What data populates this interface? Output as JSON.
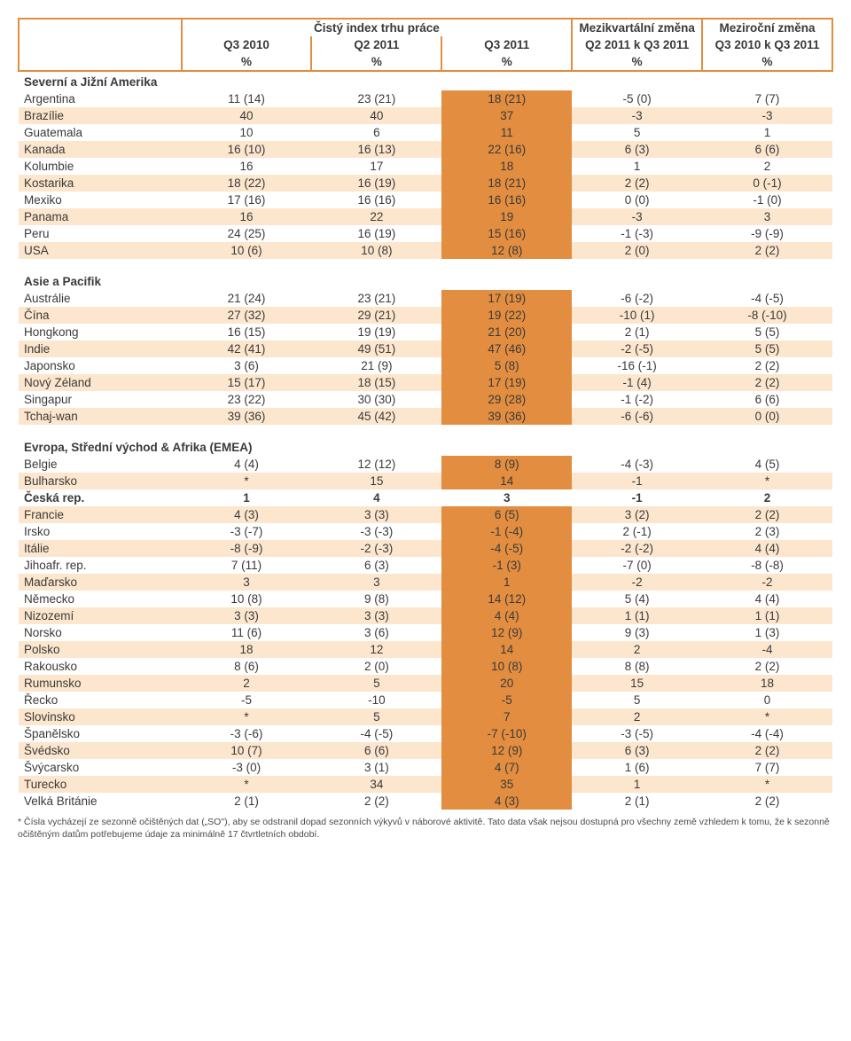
{
  "colors": {
    "border": "#e28d3f",
    "highlight": "#e28d3f",
    "stripe": "#fce6cd",
    "text": "#3a3a3a",
    "background": "#ffffff"
  },
  "header": {
    "top": [
      "",
      "Čistý index trhu práce",
      "Mezikvartální změna",
      "Meziroční změna"
    ],
    "mid": [
      "",
      "Q3 2010",
      "Q2 2011",
      "Q3 2011",
      "Q2 2011 k Q3 2011",
      "Q3 2010 k Q3 2011"
    ],
    "pct": [
      "",
      "%",
      "%",
      "%",
      "%",
      "%"
    ]
  },
  "sections": [
    {
      "title": "Severní a Jižní Amerika",
      "rows": [
        {
          "label": "Argentina",
          "c": [
            "11 (14)",
            "23 (21)",
            "18 (21)",
            "-5 (0)",
            "7 (7)"
          ],
          "hl": [
            2
          ]
        },
        {
          "label": "Brazílie",
          "c": [
            "40",
            "40",
            "37",
            "-3",
            "-3"
          ],
          "hl": [
            2
          ],
          "stripe": true
        },
        {
          "label": "Guatemala",
          "c": [
            "10",
            "6",
            "11",
            "5",
            "1"
          ],
          "hl": [
            2
          ]
        },
        {
          "label": "Kanada",
          "c": [
            "16 (10)",
            "16 (13)",
            "22 (16)",
            "6 (3)",
            "6 (6)"
          ],
          "hl": [
            2
          ],
          "stripe": true
        },
        {
          "label": "Kolumbie",
          "c": [
            "16",
            "17",
            "18",
            "1",
            "2"
          ],
          "hl": [
            2
          ]
        },
        {
          "label": "Kostarika",
          "c": [
            "18 (22)",
            "16 (19)",
            "18 (21)",
            "2 (2)",
            "0 (-1)"
          ],
          "hl": [
            2
          ],
          "stripe": true
        },
        {
          "label": "Mexiko",
          "c": [
            "17 (16)",
            "16 (16)",
            "16 (16)",
            "0 (0)",
            "-1 (0)"
          ],
          "hl": [
            2
          ]
        },
        {
          "label": "Panama",
          "c": [
            "16",
            "22",
            "19",
            "-3",
            "3"
          ],
          "hl": [
            2
          ],
          "stripe": true
        },
        {
          "label": "Peru",
          "c": [
            "24 (25)",
            "16 (19)",
            "15 (16)",
            "-1 (-3)",
            "-9 (-9)"
          ],
          "hl": [
            2
          ]
        },
        {
          "label": "USA",
          "c": [
            "10 (6)",
            "10 (8)",
            "12 (8)",
            "2 (0)",
            "2 (2)"
          ],
          "hl": [
            2
          ],
          "stripe": true
        }
      ]
    },
    {
      "title": "Asie a Pacifik",
      "rows": [
        {
          "label": "Austrálie",
          "c": [
            "21 (24)",
            "23 (21)",
            "17 (19)",
            "-6 (-2)",
            "-4 (-5)"
          ],
          "hl": [
            2
          ]
        },
        {
          "label": "Čína",
          "c": [
            "27 (32)",
            "29 (21)",
            "19 (22)",
            "-10 (1)",
            "-8 (-10)"
          ],
          "hl": [
            2
          ],
          "stripe": true
        },
        {
          "label": "Hongkong",
          "c": [
            "16 (15)",
            "19 (19)",
            "21 (20)",
            "2 (1)",
            "5 (5)"
          ],
          "hl": [
            2
          ]
        },
        {
          "label": "Indie",
          "c": [
            "42 (41)",
            "49 (51)",
            "47 (46)",
            "-2 (-5)",
            "5 (5)"
          ],
          "hl": [
            2
          ],
          "stripe": true
        },
        {
          "label": "Japonsko",
          "c": [
            "3 (6)",
            "21 (9)",
            "5 (8)",
            "-16 (-1)",
            "2 (2)"
          ],
          "hl": [
            2
          ]
        },
        {
          "label": "Nový Zéland",
          "c": [
            "15 (17)",
            "18 (15)",
            "17 (19)",
            "-1 (4)",
            "2 (2)"
          ],
          "hl": [
            2
          ],
          "stripe": true
        },
        {
          "label": "Singapur",
          "c": [
            "23 (22)",
            "30 (30)",
            "29 (28)",
            "-1 (-2)",
            "6 (6)"
          ],
          "hl": [
            2
          ]
        },
        {
          "label": "Tchaj-wan",
          "c": [
            "39 (36)",
            "45 (42)",
            "39 (36)",
            "-6 (-6)",
            "0 (0)"
          ],
          "hl": [
            2
          ],
          "stripe": true
        }
      ]
    },
    {
      "title": "Evropa, Střední východ & Afrika (EMEA)",
      "rows": [
        {
          "label": "Belgie",
          "c": [
            "4 (4)",
            "12 (12)",
            "8 (9)",
            "-4 (-3)",
            "4 (5)"
          ],
          "hl": [
            2
          ]
        },
        {
          "label": "Bulharsko",
          "c": [
            "*",
            "15",
            "14",
            "-1",
            "*"
          ],
          "hl": [
            2
          ],
          "stripe": true
        },
        {
          "label": "Česká rep.",
          "c": [
            "1",
            "4",
            "3",
            "-1",
            "2"
          ],
          "hl": [],
          "bold": true
        },
        {
          "label": "Francie",
          "c": [
            "4 (3)",
            "3 (3)",
            "6 (5)",
            "3 (2)",
            "2 (2)"
          ],
          "hl": [
            2
          ],
          "stripe": true
        },
        {
          "label": "Irsko",
          "c": [
            "-3 (-7)",
            "-3 (-3)",
            "-1 (-4)",
            "2 (-1)",
            "2 (3)"
          ],
          "hl": [
            2
          ]
        },
        {
          "label": "Itálie",
          "c": [
            "-8 (-9)",
            "-2 (-3)",
            "-4 (-5)",
            "-2 (-2)",
            "4 (4)"
          ],
          "hl": [
            2
          ],
          "stripe": true
        },
        {
          "label": "Jihoafr. rep.",
          "c": [
            "7 (11)",
            "6 (3)",
            "-1 (3)",
            "-7 (0)",
            "-8 (-8)"
          ],
          "hl": [
            2
          ]
        },
        {
          "label": "Maďarsko",
          "c": [
            "3",
            "3",
            "1",
            "-2",
            "-2"
          ],
          "hl": [
            2
          ],
          "stripe": true
        },
        {
          "label": "Německo",
          "c": [
            "10 (8)",
            "9 (8)",
            "14 (12)",
            "5 (4)",
            "4 (4)"
          ],
          "hl": [
            2
          ]
        },
        {
          "label": "Nizozemí",
          "c": [
            "3 (3)",
            "3 (3)",
            "4 (4)",
            "1 (1)",
            "1 (1)"
          ],
          "hl": [
            2
          ],
          "stripe": true
        },
        {
          "label": "Norsko",
          "c": [
            "11 (6)",
            "3 (6)",
            "12 (9)",
            "9 (3)",
            "1 (3)"
          ],
          "hl": [
            2
          ]
        },
        {
          "label": "Polsko",
          "c": [
            "18",
            "12",
            "14",
            "2",
            "-4"
          ],
          "hl": [
            2
          ],
          "stripe": true
        },
        {
          "label": "Rakousko",
          "c": [
            "8 (6)",
            "2 (0)",
            "10 (8)",
            "8 (8)",
            "2 (2)"
          ],
          "hl": [
            2
          ]
        },
        {
          "label": "Rumunsko",
          "c": [
            "2",
            "5",
            "20",
            "15",
            "18"
          ],
          "hl": [
            2
          ],
          "stripe": true
        },
        {
          "label": "Řecko",
          "c": [
            "-5",
            "-10",
            "-5",
            "5",
            "0"
          ],
          "hl": [
            2
          ]
        },
        {
          "label": "Slovinsko",
          "c": [
            "*",
            "5",
            "7",
            "2",
            "*"
          ],
          "hl": [
            2
          ],
          "stripe": true
        },
        {
          "label": "Španělsko",
          "c": [
            "-3 (-6)",
            "-4 (-5)",
            "-7 (-10)",
            "-3 (-5)",
            "-4 (-4)"
          ],
          "hl": [
            2
          ]
        },
        {
          "label": "Švédsko",
          "c": [
            "10 (7)",
            "6 (6)",
            "12 (9)",
            "6 (3)",
            "2 (2)"
          ],
          "hl": [
            2
          ],
          "stripe": true
        },
        {
          "label": "Švýcarsko",
          "c": [
            "-3 (0)",
            "3 (1)",
            "4 (7)",
            "1 (6)",
            "7 (7)"
          ],
          "hl": [
            2
          ]
        },
        {
          "label": "Turecko",
          "c": [
            "*",
            "34",
            "35",
            "1",
            "*"
          ],
          "hl": [
            2
          ],
          "stripe": true
        },
        {
          "label": "Velká Británie",
          "c": [
            "2 (1)",
            "2 (2)",
            "4 (3)",
            "2 (1)",
            "2 (2)"
          ],
          "hl": [
            2
          ]
        }
      ]
    }
  ],
  "footnote": "* Čísla vycházejí ze sezonně očištěných dat („SO\"), aby se odstranil dopad sezonních výkyvů v náborové aktivitě. Tato data však nejsou dostupná pro všechny země vzhledem k tomu, že k sezonně očištěným datům potřebujeme údaje za minimálně 17 čtvrtletních období."
}
